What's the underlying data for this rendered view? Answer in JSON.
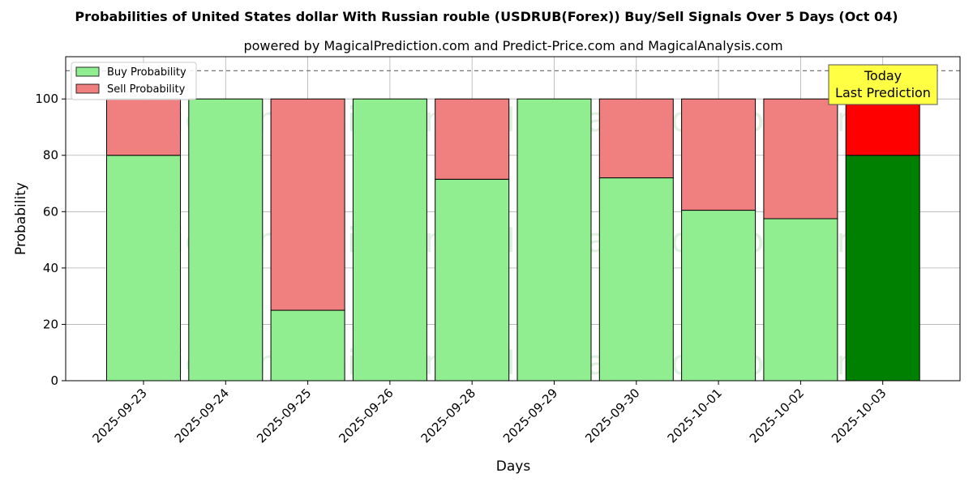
{
  "chart_data": {
    "type": "bar",
    "stacked": true,
    "title": "Probabilities of United States dollar With Russian rouble (USDRUB(Forex)) Buy/Sell Signals Over 5 Days (Oct 04)",
    "subtitle": "powered by MagicalPrediction.com and Predict-Price.com and MagicalAnalysis.com",
    "xlabel": "Days",
    "ylabel": "Probability",
    "ylim": [
      0,
      115
    ],
    "yticks": [
      0,
      20,
      40,
      60,
      80,
      100
    ],
    "reference_line": 110,
    "grid": true,
    "legend_position": "top-left",
    "categories": [
      "2025-09-23",
      "2025-09-24",
      "2025-09-25",
      "2025-09-26",
      "2025-09-28",
      "2025-09-29",
      "2025-09-30",
      "2025-10-01",
      "2025-10-02",
      "2025-10-03"
    ],
    "series": [
      {
        "name": "Buy Probability",
        "values": [
          80,
          100,
          25,
          100,
          71.5,
          100,
          72,
          60.5,
          57.5,
          80
        ]
      },
      {
        "name": "Sell Probability",
        "values": [
          20,
          0,
          75,
          0,
          28.5,
          0,
          28,
          39.5,
          42.5,
          20
        ]
      }
    ],
    "annotation": {
      "line1": "Today",
      "line2": "Last Prediction"
    },
    "watermarks": [
      "MagicalAnalysis.com",
      "MagicalPrediction.com"
    ]
  },
  "colors": {
    "buy": "#90ee90",
    "sell": "#f08080",
    "buy_highlight": "#008000",
    "sell_highlight": "#ff0000",
    "annotation_bg": "#ffff44"
  }
}
